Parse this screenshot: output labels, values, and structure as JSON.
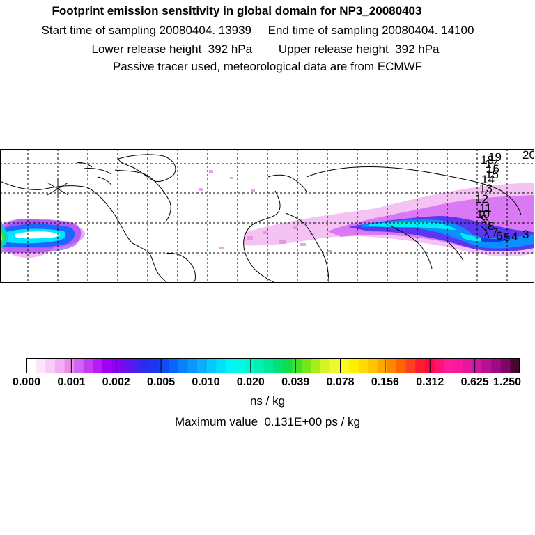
{
  "header": {
    "title": "Footprint emission sensitivity in global domain for NP3_20080403",
    "sampling_line": "Start time of sampling 20080404. 13939     End time of sampling 20080404. 14100",
    "release_line": "Lower release height  392 hPa        Upper release height  392 hPa",
    "tracer_line": "Passive tracer used, meteorological data are from ECMWF"
  },
  "map": {
    "projection": "lat-lon global, cropped",
    "gridlines": "dashed",
    "track_labels": [
      "19",
      "18",
      "17",
      "16",
      "15",
      "14",
      "13",
      "12",
      "11",
      "10",
      "9",
      "8",
      "7",
      "6",
      "5",
      "4",
      "3",
      "20"
    ],
    "plume_colors": {
      "light": "#ee99ee",
      "mid": "#cc33ff",
      "blue": "#1144ff",
      "cyan": "#00eeff",
      "green": "#22dd55",
      "yellow": "#ffff33",
      "teal": "#00ccbb"
    }
  },
  "legend": {
    "tick_labels": [
      "0.000",
      "0.001",
      "0.002",
      "0.005",
      "0.010",
      "0.020",
      "0.039",
      "0.078",
      "0.156",
      "0.312",
      "0.625",
      "1.250"
    ],
    "colors": [
      "#ffffff",
      "#fde6fd",
      "#f8ccf8",
      "#f2b0f2",
      "#e88ee8",
      "#d066f2",
      "#c33cf4",
      "#b31cf5",
      "#a000f5",
      "#8c00f3",
      "#6a10f0",
      "#4a20ee",
      "#2a2cee",
      "#1a38f2",
      "#0f4cf6",
      "#0a66fa",
      "#0a80fc",
      "#0a98fe",
      "#0ab0fe",
      "#06c8fe",
      "#00e0fe",
      "#00f4f8",
      "#00fae6",
      "#00f8cc",
      "#00f2b2",
      "#00ea96",
      "#00e276",
      "#10dc4e",
      "#40e02c",
      "#76e618",
      "#a8ec18",
      "#d6f424",
      "#eef830",
      "#fcfa20",
      "#fff000",
      "#ffdc00",
      "#ffc400",
      "#ffa600",
      "#ff8600",
      "#ff6400",
      "#ff4020",
      "#ff1c30",
      "#ff0a46",
      "#ff1474",
      "#ff1c96",
      "#f51a9e",
      "#e418a0",
      "#d016a0",
      "#b80f94",
      "#9e0a84",
      "#7e0666",
      "#4a0432"
    ],
    "unit": "ns / kg",
    "max_value_line": "Maximum value  0.131E+00 ps / kg"
  }
}
